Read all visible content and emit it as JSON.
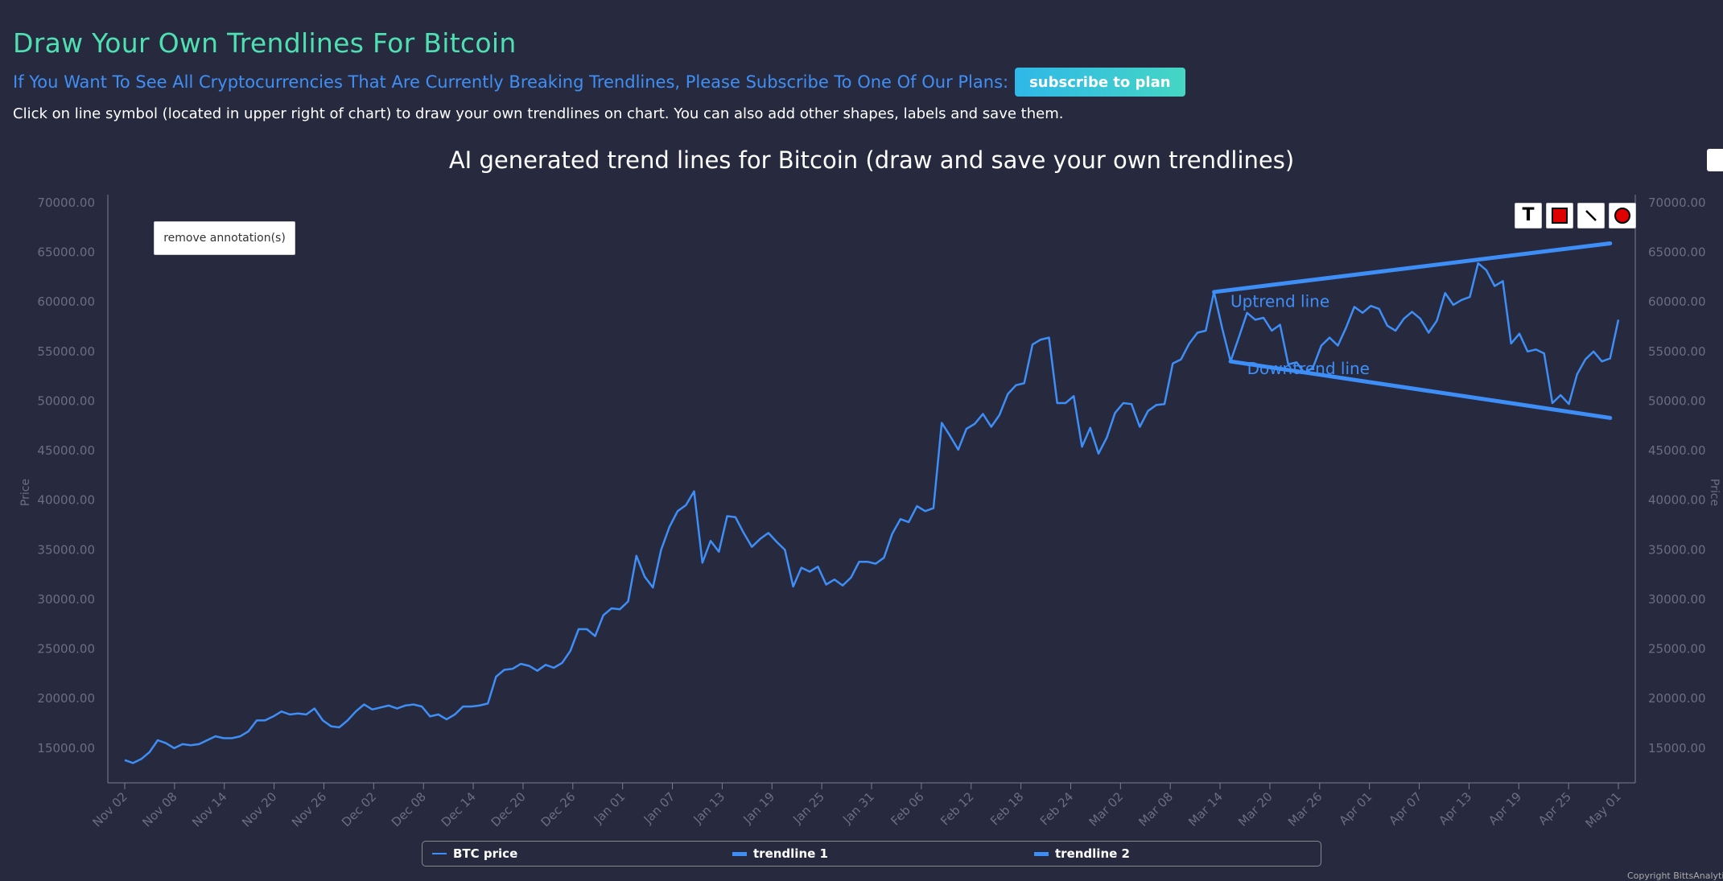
{
  "header": {
    "title": "Draw Your Own Trendlines For Bitcoin",
    "promo_text": "If You Want To See All Cryptocurrencies That Are Currently Breaking Trendlines, Please Subscribe To One Of Our Plans:",
    "subscribe_label": "subscribe to plan",
    "instructions": "Click on line symbol (located in upper right of chart) to draw your own trendlines on chart. You can also add other shapes, labels and save them."
  },
  "controls": {
    "remove_annotations_label": "remove annotation(s)",
    "tools": [
      "text-tool-icon",
      "rectangle-tool-icon",
      "line-tool-icon",
      "circle-tool-icon"
    ],
    "text_tool_glyph": "T"
  },
  "copyright": "Copyright BittsAnalyti",
  "colors": {
    "background": "#272a3f",
    "line": "#3e8ef7",
    "title": "#4fe0b2",
    "promo": "#3f8ff5",
    "axis_text": "#6b6e80"
  },
  "chart_data": {
    "type": "line",
    "title": "AI generated trend lines for Bitcoin (draw and save your own trendlines)",
    "ylabel": "Price",
    "ylim": [
      11500,
      70000
    ],
    "y_ticks": [
      "15000.00",
      "20000.00",
      "25000.00",
      "30000.00",
      "35000.00",
      "40000.00",
      "45000.00",
      "50000.00",
      "55000.00",
      "60000.00",
      "65000.00",
      "70000.00"
    ],
    "x_ticks": [
      "Nov 02",
      "Nov 08",
      "Nov 14",
      "Nov 20",
      "Nov 26",
      "Dec 02",
      "Dec 08",
      "Dec 14",
      "Dec 20",
      "Dec 26",
      "Jan 01",
      "Jan 07",
      "Jan 13",
      "Jan 19",
      "Jan 25",
      "Jan 31",
      "Feb 06",
      "Feb 12",
      "Feb 18",
      "Feb 24",
      "Mar 02",
      "Mar 08",
      "Mar 14",
      "Mar 20",
      "Mar 26",
      "Apr 01",
      "Apr 07",
      "Apr 13",
      "Apr 19",
      "Apr 25",
      "May 01"
    ],
    "x_start": "Nov 02",
    "x_end": "May 01",
    "grid": false,
    "legend_position": "bottom",
    "series": [
      {
        "name": "BTC price",
        "values": [
          13800,
          13500,
          13900,
          14600,
          15800,
          15500,
          15000,
          15400,
          15300,
          15400,
          15800,
          16200,
          16000,
          16000,
          16200,
          16700,
          17800,
          17800,
          18200,
          18700,
          18400,
          18500,
          18400,
          19000,
          17800,
          17200,
          17100,
          17800,
          18700,
          19400,
          18900,
          19100,
          19300,
          19000,
          19300,
          19400,
          19200,
          18200,
          18400,
          17900,
          18400,
          19200,
          19200,
          19300,
          19500,
          22200,
          22900,
          23000,
          23500,
          23300,
          22800,
          23400,
          23100,
          23600,
          24800,
          27000,
          27000,
          26300,
          28400,
          29100,
          29000,
          29800,
          34400,
          32300,
          31200,
          35000,
          37300,
          38900,
          39500,
          40900,
          33700,
          35900,
          34800,
          38400,
          38300,
          36700,
          35300,
          36100,
          36700,
          35800,
          35000,
          31300,
          33200,
          32800,
          33300,
          31500,
          32000,
          31400,
          32200,
          33800,
          33800,
          33600,
          34200,
          36600,
          38100,
          37800,
          39400,
          38900,
          39200,
          47800,
          46500,
          45100,
          47200,
          47700,
          48700,
          47400,
          48600,
          50700,
          51600,
          51800,
          55700,
          56200,
          56400,
          49800,
          49800,
          50500,
          45400,
          47300,
          44700,
          46300,
          48800,
          49800,
          49700,
          47400,
          49000,
          49600,
          49700,
          53800,
          54200,
          55800,
          56900,
          57100,
          61000,
          57300,
          54000,
          56400,
          58900,
          58200,
          58400,
          57100,
          57700,
          53700,
          53900,
          52800,
          53400,
          55600,
          56400,
          55600,
          57400,
          59500,
          58900,
          59600,
          59300,
          57600,
          57100,
          58300,
          59000,
          58300,
          56900,
          58100,
          60900,
          59700,
          60200,
          60500,
          63900,
          63200,
          61600,
          62100,
          55800,
          56800,
          55000,
          55200,
          54800,
          49800,
          50600,
          49700,
          52700,
          54200,
          55000,
          54000,
          54300,
          58200
        ]
      },
      {
        "name": "trendline 1",
        "points": [
          [
            132,
            61000
          ],
          [
            180,
            65900
          ]
        ]
      },
      {
        "name": "trendline 2",
        "points": [
          [
            134,
            54000
          ],
          [
            180,
            48300
          ]
        ]
      }
    ],
    "annotations": [
      {
        "text": "Uptrend line",
        "x": 134,
        "y": 59500
      },
      {
        "text": "Downtrend line",
        "x": 136,
        "y": 52700
      }
    ]
  }
}
